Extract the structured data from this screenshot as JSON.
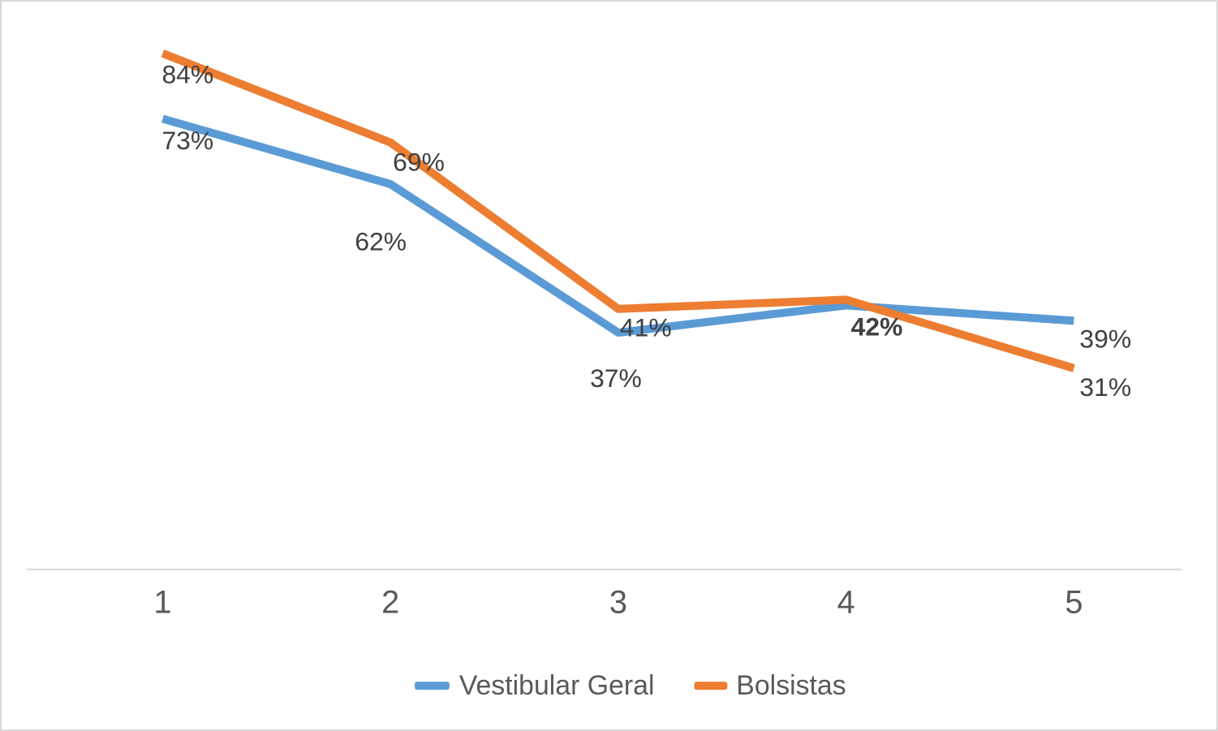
{
  "chart_data": {
    "type": "line",
    "title": "",
    "xlabel": "",
    "ylabel": "",
    "categories": [
      "1",
      "2",
      "3",
      "4",
      "5"
    ],
    "series": [
      {
        "name": "Vestibular Geral",
        "color": "#5B9BD5",
        "values": [
          73,
          62,
          37,
          42,
          39
        ],
        "data_labels": [
          "73%",
          "62%",
          "37%",
          "42%",
          "39%"
        ]
      },
      {
        "name": "Bolsistas",
        "color": "#ED7D31",
        "values": [
          84,
          69,
          41,
          42,
          31
        ],
        "data_labels": [
          "84%",
          "69%",
          "41%",
          "42%",
          "31%"
        ]
      }
    ],
    "ylim": [
      0,
      90
    ],
    "grid": false,
    "y_axis_visible": false,
    "legend_position": "bottom",
    "shared_label_at_x4": "42%",
    "shared_label_at_x4_bold": true,
    "axis_color": "#D9D9D9",
    "label_color": "#404040",
    "tick_color": "#595959",
    "legend_text_color": "#595959",
    "background_color": "#FFFFFF",
    "border_color": "#D9D9D9"
  }
}
